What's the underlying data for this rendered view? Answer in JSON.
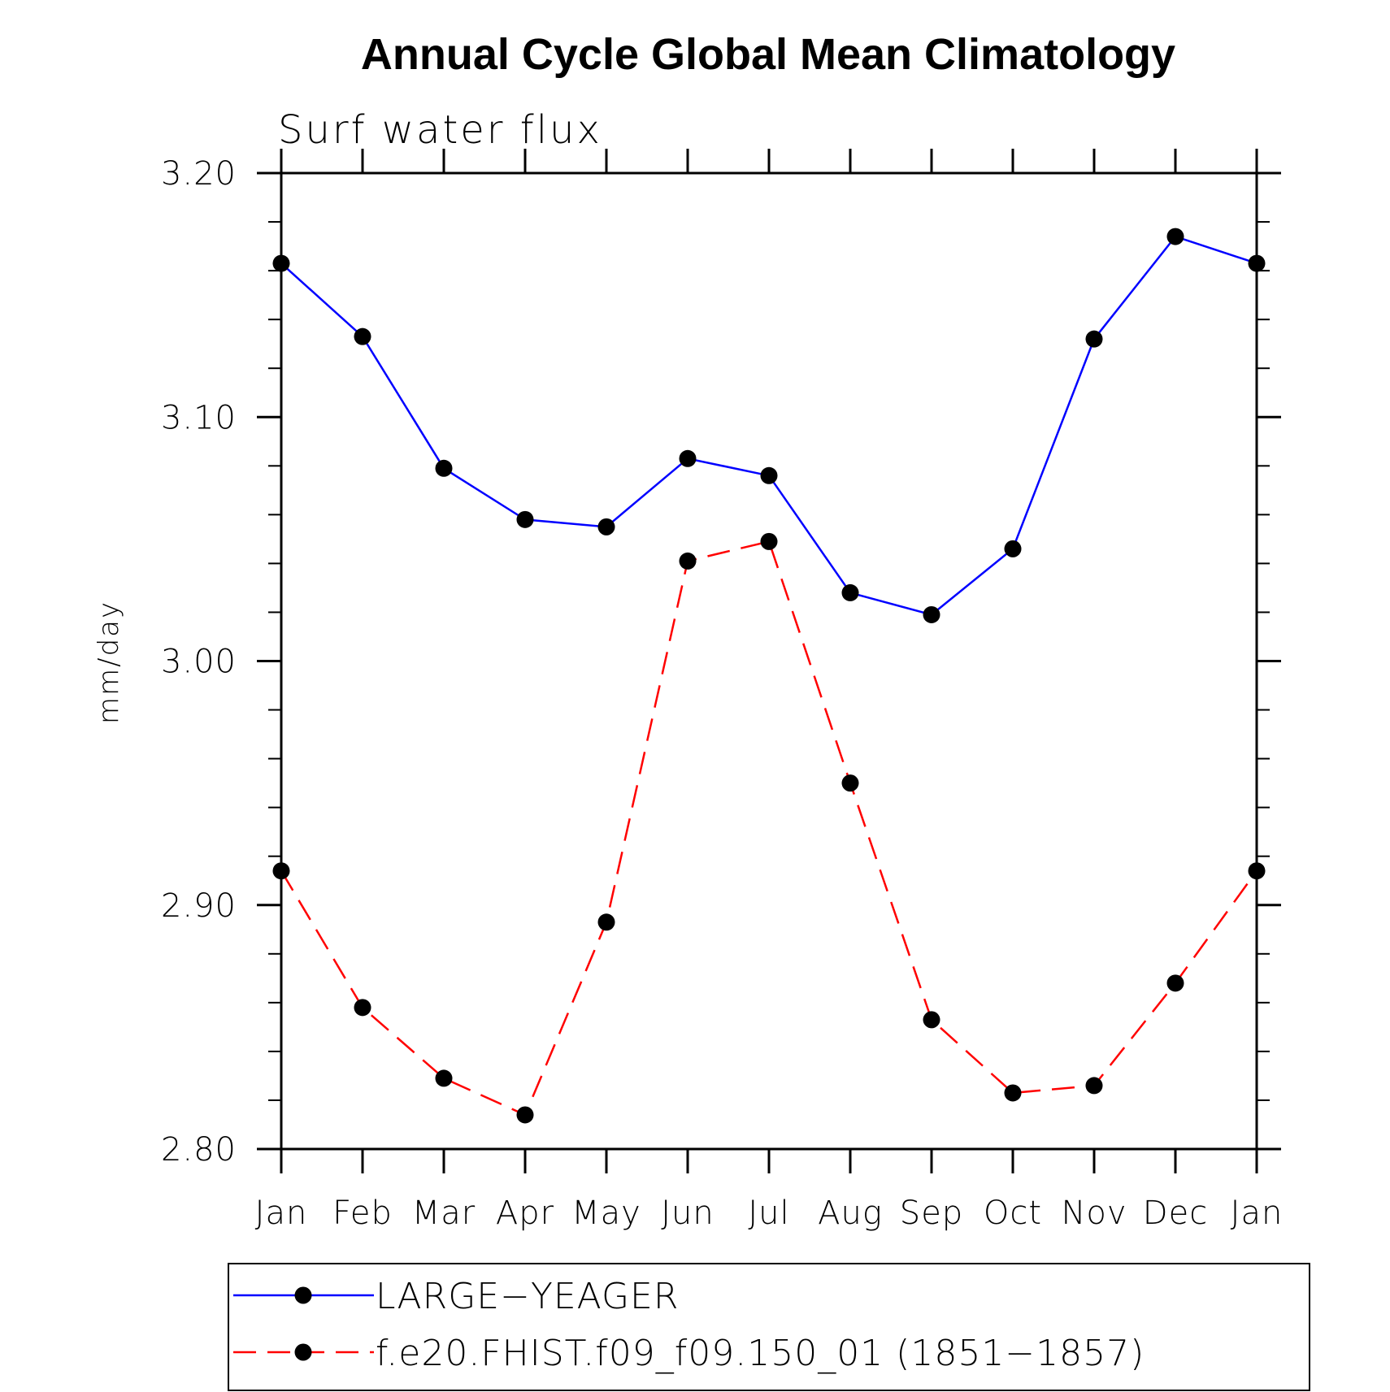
{
  "chart_data": {
    "type": "line",
    "title": "Annual Cycle Global Mean Climatology",
    "subtitle": "Surf water flux",
    "ylabel": "mm/day",
    "xlabel": "",
    "categories": [
      "Jan",
      "Feb",
      "Mar",
      "Apr",
      "May",
      "Jun",
      "Jul",
      "Aug",
      "Sep",
      "Oct",
      "Nov",
      "Dec",
      "Jan"
    ],
    "ylim": [
      2.8,
      3.2
    ],
    "yticks": [
      "3.20",
      "3.10",
      "3.00",
      "2.90",
      "2.80"
    ],
    "legend_position": "bottom",
    "series": [
      {
        "name": "LARGE−YEAGER",
        "color": "#0000ff",
        "line_style": "solid",
        "marker": "filled-circle",
        "values": [
          3.163,
          3.133,
          3.079,
          3.058,
          3.055,
          3.083,
          3.076,
          3.028,
          3.019,
          3.046,
          3.132,
          3.174,
          3.163
        ]
      },
      {
        "name": "f.e20.FHIST.f09_f09.150_01 (1851−1857)",
        "color": "#ff0000",
        "line_style": "dashed",
        "marker": "filled-circle",
        "values": [
          2.914,
          2.858,
          2.829,
          2.814,
          2.893,
          3.041,
          3.049,
          2.95,
          2.853,
          2.823,
          2.826,
          2.868,
          2.914
        ]
      }
    ]
  }
}
